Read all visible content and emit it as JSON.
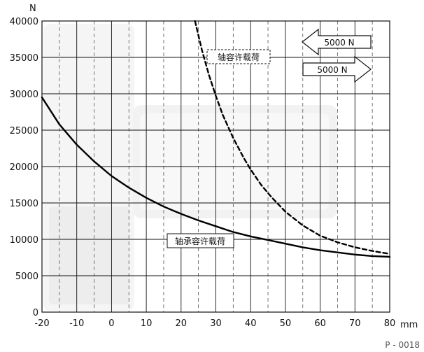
{
  "chart_data": {
    "type": "line",
    "xlabel": "mm",
    "ylabel": "N",
    "xlim": [
      -20,
      80
    ],
    "ylim": [
      0,
      40000
    ],
    "x_ticks": [
      -20,
      -10,
      0,
      10,
      20,
      30,
      40,
      50,
      60,
      70,
      80
    ],
    "y_ticks": [
      0,
      5000,
      10000,
      15000,
      20000,
      25000,
      30000,
      35000,
      40000
    ],
    "grid": "major solid, minor dashed",
    "series": [
      {
        "name": "轴承容许载荷",
        "style": "solid",
        "x": [
          -20,
          -15,
          -10,
          -5,
          0,
          5,
          10,
          15,
          20,
          25,
          30,
          35,
          40,
          45,
          50,
          55,
          60,
          65,
          70,
          75,
          80
        ],
        "y": [
          29500,
          25800,
          23000,
          20700,
          18700,
          17100,
          15700,
          14500,
          13500,
          12600,
          11800,
          11000,
          10400,
          9900,
          9400,
          8900,
          8500,
          8200,
          7900,
          7700,
          7600
        ]
      },
      {
        "name": "轴容许载荷",
        "style": "dashed",
        "x": [
          24,
          26,
          28,
          30,
          32,
          35,
          38,
          40,
          43,
          46,
          50,
          55,
          60,
          65,
          70,
          75,
          80
        ],
        "y": [
          40000,
          36000,
          32600,
          29700,
          27100,
          23900,
          21200,
          19600,
          17500,
          15800,
          13800,
          11900,
          10500,
          9600,
          8900,
          8400,
          8000
        ]
      }
    ],
    "annotations": [
      {
        "text": "5000 N",
        "direction": "left"
      },
      {
        "text": "5000 N",
        "direction": "right"
      }
    ]
  },
  "footer": {
    "code": "P - 0018"
  }
}
